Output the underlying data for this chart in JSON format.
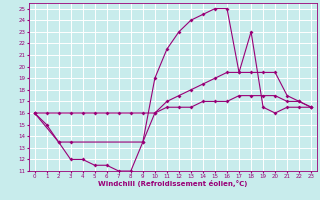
{
  "xlabel": "Windchill (Refroidissement éolien,°C)",
  "bg_color": "#c8ecec",
  "grid_color": "#ffffff",
  "line_color": "#990077",
  "xlim": [
    -0.5,
    23.5
  ],
  "ylim": [
    11,
    25.5
  ],
  "xticks": [
    0,
    1,
    2,
    3,
    4,
    5,
    6,
    7,
    8,
    9,
    10,
    11,
    12,
    13,
    14,
    15,
    16,
    17,
    18,
    19,
    20,
    21,
    22,
    23
  ],
  "yticks": [
    11,
    12,
    13,
    14,
    15,
    16,
    17,
    18,
    19,
    20,
    21,
    22,
    23,
    24,
    25
  ],
  "curve1_x": [
    0,
    1,
    2,
    3,
    4,
    5,
    6,
    7,
    8,
    9,
    10,
    11,
    12,
    13,
    14,
    15,
    16,
    17,
    18,
    19,
    20,
    21,
    22,
    23
  ],
  "curve1_y": [
    16.0,
    15.0,
    13.5,
    12.0,
    12.0,
    11.5,
    11.5,
    11.0,
    11.0,
    13.5,
    19.0,
    21.5,
    23.0,
    24.0,
    24.5,
    25.0,
    25.0,
    19.5,
    23.0,
    16.5,
    16.0,
    16.5,
    16.5,
    16.5
  ],
  "curve2_x": [
    0,
    2,
    3,
    9,
    10,
    11,
    12,
    13,
    14,
    15,
    16,
    17,
    18,
    19,
    20,
    21,
    22,
    23
  ],
  "curve2_y": [
    16.0,
    13.5,
    13.5,
    13.5,
    16.0,
    17.0,
    17.5,
    18.0,
    18.5,
    19.0,
    19.5,
    19.5,
    19.5,
    19.5,
    19.5,
    17.5,
    17.0,
    16.5
  ],
  "curve3_x": [
    0,
    1,
    2,
    3,
    4,
    5,
    6,
    7,
    8,
    9,
    10,
    11,
    12,
    13,
    14,
    15,
    16,
    17,
    18,
    19,
    20,
    21,
    22,
    23
  ],
  "curve3_y": [
    16.0,
    16.0,
    16.0,
    16.0,
    16.0,
    16.0,
    16.0,
    16.0,
    16.0,
    16.0,
    16.0,
    16.5,
    16.5,
    16.5,
    17.0,
    17.0,
    17.0,
    17.5,
    17.5,
    17.5,
    17.5,
    17.0,
    17.0,
    16.5
  ]
}
